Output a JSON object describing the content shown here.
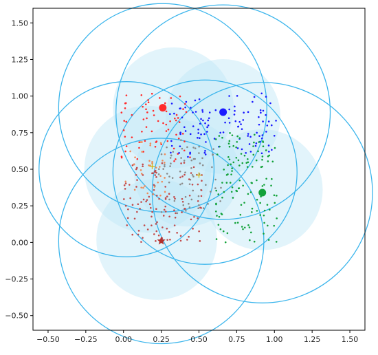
{
  "chart_data": {
    "type": "scatter",
    "title": "",
    "xlabel": "",
    "ylabel": "",
    "xlim": [
      -0.6,
      1.6
    ],
    "ylim": [
      -0.6,
      1.6
    ],
    "grid": false,
    "xticks": [
      -0.5,
      -0.25,
      0.0,
      0.25,
      0.5,
      0.75,
      1.0,
      1.25,
      1.5
    ],
    "yticks": [
      -0.5,
      -0.25,
      0.0,
      0.25,
      0.5,
      0.75,
      1.0,
      1.25,
      1.5
    ],
    "xtick_labels": [
      "−0.50",
      "−0.25",
      "0.00",
      "0.25",
      "0.50",
      "0.75",
      "1.00",
      "1.25",
      "1.50"
    ],
    "ytick_labels": [
      "−0.50",
      "−0.25",
      "0.00",
      "0.25",
      "0.50",
      "0.75",
      "1.00",
      "1.25",
      "1.50"
    ],
    "colors": {
      "red": "#ff2b2b",
      "blue": "#1a1aff",
      "green": "#13a23a",
      "gray": "#8a8a8a",
      "brown": "#c24a4a",
      "orange": "#ef8b5a",
      "circle_outline": "#3bb5ec",
      "circle_fill": "#bfe6f6",
      "gold": "#d6b200",
      "star": "#b3302c"
    },
    "centers": [
      {
        "x": 0.26,
        "y": 0.92,
        "color": "red",
        "marker": "circle"
      },
      {
        "x": 0.66,
        "y": 0.89,
        "color": "blue",
        "marker": "circle"
      },
      {
        "x": 0.92,
        "y": 0.34,
        "color": "green",
        "marker": "circle"
      },
      {
        "x": 0.25,
        "y": 0.01,
        "color": "star",
        "marker": "star"
      }
    ],
    "plus_markers": [
      {
        "x": 0.5,
        "y": 0.46
      },
      {
        "x": 0.19,
        "y": 0.52
      }
    ],
    "large_circles": [
      {
        "cx": 0.26,
        "cy": 0.92,
        "r": 0.69
      },
      {
        "cx": 0.66,
        "cy": 0.89,
        "r": 0.71
      },
      {
        "cx": 0.92,
        "cy": 0.34,
        "r": 0.73
      },
      {
        "cx": 0.25,
        "cy": 0.01,
        "r": 0.68
      },
      {
        "cx": 0.02,
        "cy": 0.5,
        "r": 0.58
      },
      {
        "cx": 0.54,
        "cy": 0.48,
        "r": 0.61
      }
    ],
    "shaded_circles": [
      {
        "cx": 0.33,
        "cy": 0.92,
        "r": 0.4
      },
      {
        "cx": 0.66,
        "cy": 0.86,
        "r": 0.38
      },
      {
        "cx": 0.92,
        "cy": 0.36,
        "r": 0.4
      },
      {
        "cx": 0.22,
        "cy": 0.02,
        "r": 0.4
      },
      {
        "cx": 0.16,
        "cy": 0.5,
        "r": 0.42
      },
      {
        "cx": 0.42,
        "cy": 0.47,
        "r": 0.35
      }
    ],
    "series": [
      {
        "color": "red",
        "cluster": {
          "x": [
            -0.03,
            0.45
          ],
          "y": [
            0.55,
            1.02
          ]
        },
        "count": 70,
        "seed": 11
      },
      {
        "color": "blue",
        "cluster": {
          "x": [
            0.3,
            1.02
          ],
          "y": [
            0.58,
            1.02
          ]
        },
        "count": 110,
        "seed": 23
      },
      {
        "color": "green",
        "cluster": {
          "x": [
            0.6,
            1.02
          ],
          "y": [
            0.0,
            0.75
          ]
        },
        "count": 130,
        "seed": 37
      },
      {
        "color": "gray",
        "cluster": {
          "x": [
            0.2,
            0.65
          ],
          "y": [
            0.2,
            0.7
          ]
        },
        "count": 70,
        "seed": 41
      },
      {
        "color": "brown",
        "cluster": {
          "x": [
            0.0,
            0.52
          ],
          "y": [
            0.0,
            0.55
          ]
        },
        "count": 120,
        "seed": 53
      },
      {
        "color": "orange",
        "cluster": {
          "x": [
            0.0,
            0.28
          ],
          "y": [
            0.3,
            0.7
          ]
        },
        "count": 35,
        "seed": 61
      }
    ]
  }
}
